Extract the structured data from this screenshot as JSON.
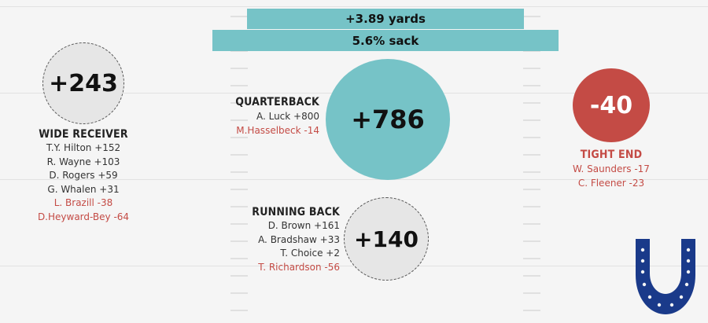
{
  "banners": {
    "yards": "+3.89 yards",
    "sack": "5.6% sack"
  },
  "wide_receiver": {
    "value": "+243",
    "title": "WIDE RECEIVER",
    "players": [
      {
        "text": "T.Y. Hilton +152",
        "negative": false
      },
      {
        "text": "R. Wayne +103",
        "negative": false
      },
      {
        "text": "D. Rogers +59",
        "negative": false
      },
      {
        "text": "G. Whalen +31",
        "negative": false
      },
      {
        "text": "L. Brazill -38",
        "negative": true
      },
      {
        "text": "D.Heyward-Bey -64",
        "negative": true
      }
    ]
  },
  "quarterback": {
    "value": "+786",
    "title": "QUARTERBACK",
    "players": [
      {
        "text": "A. Luck +800",
        "negative": false
      },
      {
        "text": "M.Hasselbeck -14",
        "negative": true
      }
    ]
  },
  "running_back": {
    "value": "+140",
    "title": "RUNNING BACK",
    "players": [
      {
        "text": "D. Brown +161",
        "negative": false
      },
      {
        "text": "A. Bradshaw +33",
        "negative": false
      },
      {
        "text": "T. Choice +2",
        "negative": false
      },
      {
        "text": "T. Richardson -56",
        "negative": true
      }
    ]
  },
  "tight_end": {
    "value": "-40",
    "title": "TIGHT END",
    "players": [
      {
        "text": "W. Saunders -17",
        "negative": true
      },
      {
        "text": "C. Fleener -23",
        "negative": true
      }
    ]
  },
  "colors": {
    "teal": "#76c3c7",
    "red": "#c44b45",
    "gray": "#e6e6e6",
    "colts_blue": "#1a3a8a"
  },
  "logo": {
    "icon": "horseshoe-logo-icon"
  }
}
